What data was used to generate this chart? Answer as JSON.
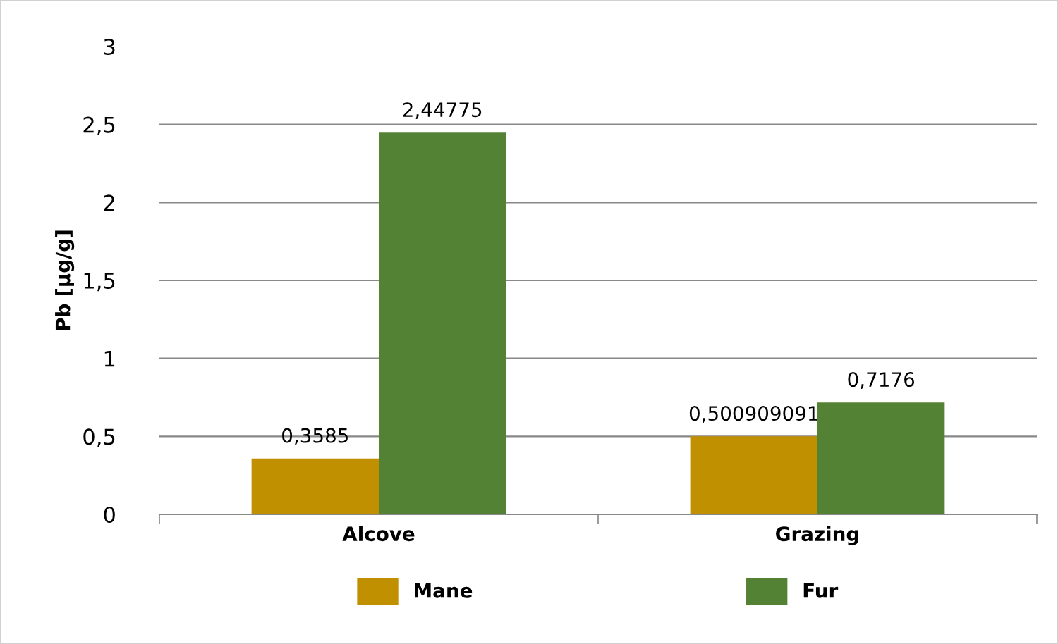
{
  "chart_data": {
    "type": "bar",
    "ylabel": "Pb [µg/g]",
    "categories": [
      "Alcove",
      "Grazing"
    ],
    "series": [
      {
        "name": "Mane",
        "color": "#c09000",
        "values": [
          0.3585,
          0.500909091
        ],
        "value_labels": [
          "0,3585",
          "0,500909091"
        ]
      },
      {
        "name": "Fur",
        "color": "#548235",
        "values": [
          2.44775,
          0.7176
        ],
        "value_labels": [
          "2,44775",
          "0,7176"
        ]
      }
    ],
    "ylim": [
      0,
      3
    ],
    "yticks": [
      0,
      {
        "value": 0.5,
        "label": "0,5"
      },
      1,
      {
        "value": 1.5,
        "label": "1,5"
      },
      2,
      {
        "value": 2.5,
        "label": "2,5"
      },
      3
    ],
    "grid": "y",
    "legend": "bottom"
  }
}
